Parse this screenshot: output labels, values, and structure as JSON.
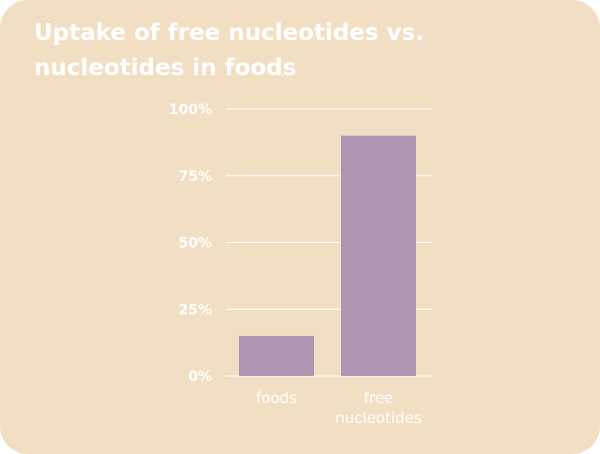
{
  "chart_data": {
    "type": "bar",
    "title": "Uptake of free nucleotides vs. nucleotides in foods",
    "categories": [
      "foods",
      "free nucleotides"
    ],
    "category_lines": [
      [
        "foods"
      ],
      [
        "free",
        "nucleotides"
      ]
    ],
    "values": [
      15,
      90
    ],
    "ylim": [
      0,
      100
    ],
    "yticks": [
      0,
      25,
      50,
      75,
      100
    ],
    "ytick_labels": [
      "0%",
      "25%",
      "50%",
      "75%",
      "100%"
    ],
    "xlabel": "",
    "ylabel": "",
    "grid": true,
    "colors": {
      "background": "#f2dfc3",
      "bar": "#b095b3",
      "text": "#ffffff",
      "grid": "#ffffff"
    }
  }
}
